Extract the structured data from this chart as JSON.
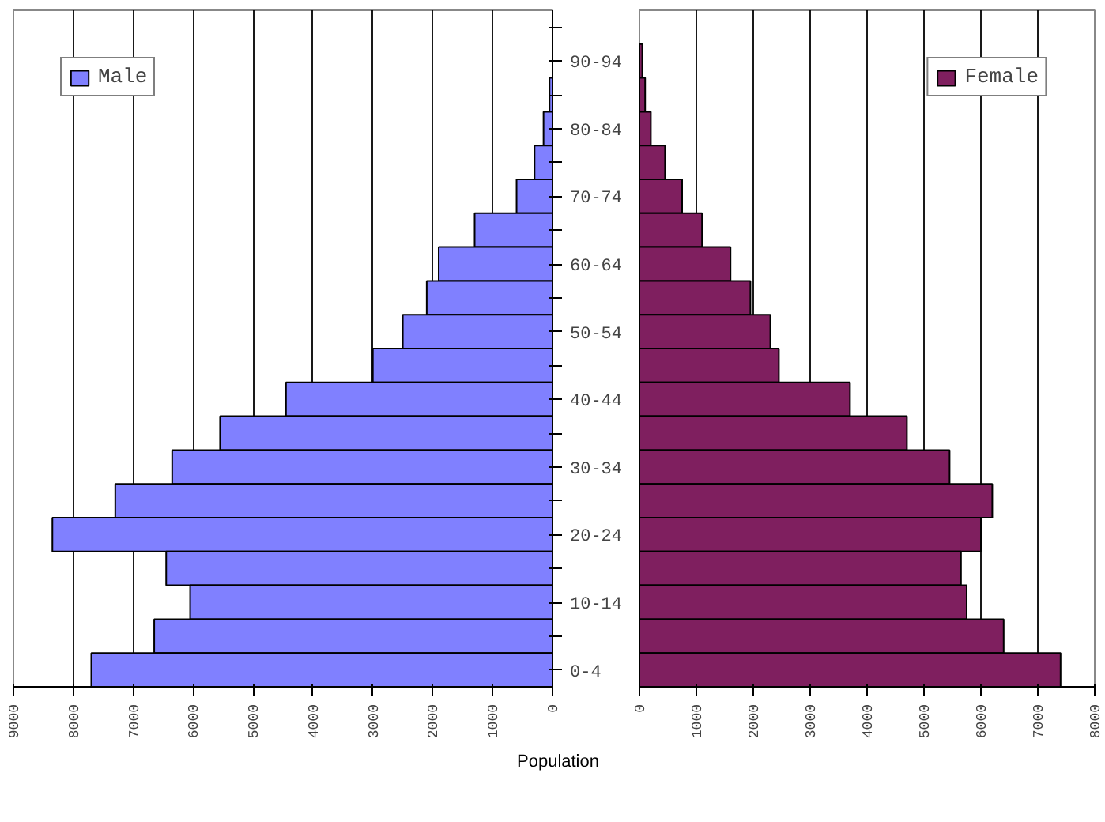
{
  "chart_data": [
    {
      "type": "bar",
      "orientation": "horizontal",
      "xlabel": "Population",
      "categories": [
        null,
        "90-94",
        null,
        "80-84",
        null,
        "70-74",
        null,
        "60-64",
        null,
        "50-54",
        null,
        "40-44",
        null,
        "30-34",
        null,
        "20-24",
        null,
        "10-14",
        null,
        "0-4"
      ],
      "series": [
        {
          "name": "Male",
          "color": "#8080ff",
          "values": [
            null,
            null,
            50,
            150,
            300,
            600,
            1300,
            1900,
            2100,
            2500,
            3000,
            4450,
            5550,
            6350,
            7300,
            8350,
            6450,
            6050,
            6650,
            7700
          ]
        }
      ],
      "xlim": [
        9000,
        0
      ],
      "xticks": [
        9000,
        8000,
        7000,
        6000,
        5000,
        4000,
        3000,
        2000,
        1000,
        0
      ],
      "grid": "x",
      "legend": "top left"
    },
    {
      "type": "bar",
      "orientation": "horizontal",
      "series": [
        {
          "name": "Female",
          "color": "#7f1f5f",
          "values": [
            null,
            50,
            100,
            200,
            450,
            750,
            1100,
            1600,
            1950,
            2300,
            2450,
            3700,
            4700,
            5450,
            6200,
            6000,
            5650,
            5750,
            6400,
            7400
          ]
        }
      ],
      "xlim": [
        0,
        8000
      ],
      "xticks": [
        0,
        1000,
        2000,
        3000,
        4000,
        5000,
        6000,
        7000,
        8000
      ],
      "grid": "x",
      "legend": "top right",
      "tick_labels": "x"
    }
  ]
}
